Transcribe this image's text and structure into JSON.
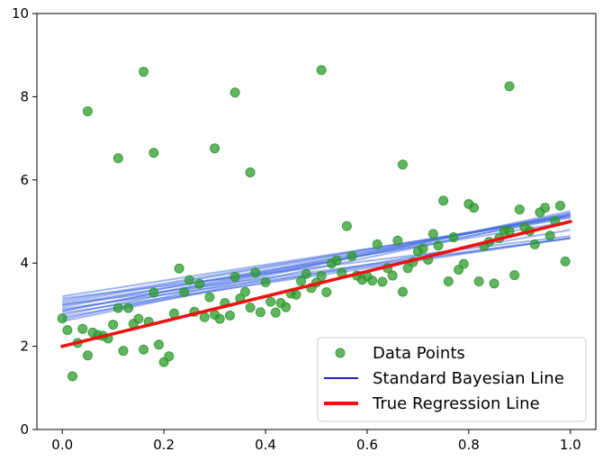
{
  "chart_data": {
    "type": "scatter",
    "title": "",
    "xlabel": "",
    "ylabel": "",
    "xlim": [
      -0.05,
      1.05
    ],
    "ylim": [
      0,
      10
    ],
    "x_ticks": [
      0.0,
      0.2,
      0.4,
      0.6,
      0.8,
      1.0
    ],
    "x_tick_labels": [
      "0.0",
      "0.2",
      "0.4",
      "0.6",
      "0.8",
      "1.0"
    ],
    "y_ticks": [
      0,
      2,
      4,
      6,
      8,
      10
    ],
    "y_tick_labels": [
      "0",
      "2",
      "4",
      "6",
      "8",
      "10"
    ],
    "grid": false,
    "legend_position": "lower-right",
    "colors": {
      "points": "#2e9a2e",
      "bayesian": "#4169e1",
      "bayesian_legend": "#0000cc",
      "true_line": "#ee1111"
    },
    "legend": [
      {
        "label": "Data Points",
        "kind": "marker"
      },
      {
        "label": "Standard Bayesian Line",
        "kind": "line"
      },
      {
        "label": "True Regression Line",
        "kind": "thick-line"
      }
    ],
    "true_line": {
      "intercept": 2.0,
      "slope": 3.0
    },
    "bayesian_samples": [
      {
        "intercept": 3.2,
        "slope": 1.9
      },
      {
        "intercept": 3.1,
        "slope": 2.05
      },
      {
        "intercept": 3.05,
        "slope": 2.1
      },
      {
        "intercept": 2.95,
        "slope": 2.2
      },
      {
        "intercept": 2.85,
        "slope": 2.35
      },
      {
        "intercept": 2.75,
        "slope": 2.45
      },
      {
        "intercept": 2.65,
        "slope": 2.6
      },
      {
        "intercept": 3.0,
        "slope": 1.6
      },
      {
        "intercept": 2.9,
        "slope": 1.7
      },
      {
        "intercept": 2.8,
        "slope": 1.8
      },
      {
        "intercept": 3.15,
        "slope": 1.5
      },
      {
        "intercept": 2.7,
        "slope": 2.1
      },
      {
        "intercept": 3.0,
        "slope": 2.0
      },
      {
        "intercept": 2.85,
        "slope": 2.25
      },
      {
        "intercept": 2.6,
        "slope": 2.55
      }
    ],
    "points": [
      {
        "x": 0.0,
        "y": 2.67
      },
      {
        "x": 0.01,
        "y": 2.39
      },
      {
        "x": 0.02,
        "y": 1.28
      },
      {
        "x": 0.03,
        "y": 2.08
      },
      {
        "x": 0.04,
        "y": 2.42
      },
      {
        "x": 0.05,
        "y": 1.78
      },
      {
        "x": 0.05,
        "y": 7.65
      },
      {
        "x": 0.06,
        "y": 2.33
      },
      {
        "x": 0.07,
        "y": 2.27
      },
      {
        "x": 0.08,
        "y": 2.25
      },
      {
        "x": 0.09,
        "y": 2.19
      },
      {
        "x": 0.1,
        "y": 2.52
      },
      {
        "x": 0.11,
        "y": 6.52
      },
      {
        "x": 0.11,
        "y": 2.92
      },
      {
        "x": 0.12,
        "y": 1.89
      },
      {
        "x": 0.13,
        "y": 2.92
      },
      {
        "x": 0.14,
        "y": 2.54
      },
      {
        "x": 0.15,
        "y": 2.66
      },
      {
        "x": 0.16,
        "y": 8.6
      },
      {
        "x": 0.16,
        "y": 1.92
      },
      {
        "x": 0.17,
        "y": 2.59
      },
      {
        "x": 0.18,
        "y": 6.65
      },
      {
        "x": 0.18,
        "y": 3.29
      },
      {
        "x": 0.19,
        "y": 2.04
      },
      {
        "x": 0.2,
        "y": 1.62
      },
      {
        "x": 0.21,
        "y": 1.76
      },
      {
        "x": 0.22,
        "y": 2.79
      },
      {
        "x": 0.23,
        "y": 3.87
      },
      {
        "x": 0.24,
        "y": 3.3
      },
      {
        "x": 0.25,
        "y": 3.59
      },
      {
        "x": 0.26,
        "y": 2.83
      },
      {
        "x": 0.27,
        "y": 3.5
      },
      {
        "x": 0.28,
        "y": 2.7
      },
      {
        "x": 0.29,
        "y": 3.18
      },
      {
        "x": 0.3,
        "y": 6.76
      },
      {
        "x": 0.3,
        "y": 2.76
      },
      {
        "x": 0.31,
        "y": 2.66
      },
      {
        "x": 0.32,
        "y": 3.04
      },
      {
        "x": 0.33,
        "y": 2.74
      },
      {
        "x": 0.34,
        "y": 8.1
      },
      {
        "x": 0.34,
        "y": 3.67
      },
      {
        "x": 0.35,
        "y": 3.15
      },
      {
        "x": 0.36,
        "y": 3.31
      },
      {
        "x": 0.37,
        "y": 6.18
      },
      {
        "x": 0.37,
        "y": 2.93
      },
      {
        "x": 0.38,
        "y": 3.77
      },
      {
        "x": 0.39,
        "y": 2.82
      },
      {
        "x": 0.4,
        "y": 3.54
      },
      {
        "x": 0.41,
        "y": 3.07
      },
      {
        "x": 0.42,
        "y": 2.81
      },
      {
        "x": 0.43,
        "y": 3.04
      },
      {
        "x": 0.44,
        "y": 2.94
      },
      {
        "x": 0.45,
        "y": 3.27
      },
      {
        "x": 0.46,
        "y": 3.24
      },
      {
        "x": 0.47,
        "y": 3.57
      },
      {
        "x": 0.48,
        "y": 3.74
      },
      {
        "x": 0.49,
        "y": 3.4
      },
      {
        "x": 0.5,
        "y": 3.53
      },
      {
        "x": 0.51,
        "y": 8.64
      },
      {
        "x": 0.51,
        "y": 3.69
      },
      {
        "x": 0.52,
        "y": 3.3
      },
      {
        "x": 0.53,
        "y": 3.99
      },
      {
        "x": 0.54,
        "y": 4.06
      },
      {
        "x": 0.55,
        "y": 3.77
      },
      {
        "x": 0.56,
        "y": 4.89
      },
      {
        "x": 0.57,
        "y": 4.17
      },
      {
        "x": 0.58,
        "y": 3.7
      },
      {
        "x": 0.59,
        "y": 3.6
      },
      {
        "x": 0.6,
        "y": 3.68
      },
      {
        "x": 0.61,
        "y": 3.58
      },
      {
        "x": 0.62,
        "y": 4.45
      },
      {
        "x": 0.63,
        "y": 3.55
      },
      {
        "x": 0.64,
        "y": 3.88
      },
      {
        "x": 0.65,
        "y": 3.7
      },
      {
        "x": 0.66,
        "y": 4.54
      },
      {
        "x": 0.67,
        "y": 6.37
      },
      {
        "x": 0.67,
        "y": 3.31
      },
      {
        "x": 0.68,
        "y": 3.88
      },
      {
        "x": 0.69,
        "y": 4.02
      },
      {
        "x": 0.7,
        "y": 4.28
      },
      {
        "x": 0.71,
        "y": 4.35
      },
      {
        "x": 0.72,
        "y": 4.08
      },
      {
        "x": 0.73,
        "y": 4.7
      },
      {
        "x": 0.74,
        "y": 4.42
      },
      {
        "x": 0.75,
        "y": 5.5
      },
      {
        "x": 0.76,
        "y": 3.56
      },
      {
        "x": 0.77,
        "y": 4.62
      },
      {
        "x": 0.78,
        "y": 3.84
      },
      {
        "x": 0.79,
        "y": 3.98
      },
      {
        "x": 0.8,
        "y": 5.42
      },
      {
        "x": 0.81,
        "y": 5.33
      },
      {
        "x": 0.82,
        "y": 3.56
      },
      {
        "x": 0.83,
        "y": 4.41
      },
      {
        "x": 0.84,
        "y": 4.51
      },
      {
        "x": 0.85,
        "y": 3.51
      },
      {
        "x": 0.86,
        "y": 4.6
      },
      {
        "x": 0.87,
        "y": 4.78
      },
      {
        "x": 0.88,
        "y": 8.25
      },
      {
        "x": 0.88,
        "y": 4.76
      },
      {
        "x": 0.89,
        "y": 3.71
      },
      {
        "x": 0.9,
        "y": 5.29
      },
      {
        "x": 0.91,
        "y": 4.86
      },
      {
        "x": 0.92,
        "y": 4.77
      },
      {
        "x": 0.93,
        "y": 4.45
      },
      {
        "x": 0.94,
        "y": 5.22
      },
      {
        "x": 0.95,
        "y": 5.33
      },
      {
        "x": 0.96,
        "y": 4.66
      },
      {
        "x": 0.97,
        "y": 5.01
      },
      {
        "x": 0.98,
        "y": 5.38
      },
      {
        "x": 0.99,
        "y": 4.04
      }
    ]
  }
}
